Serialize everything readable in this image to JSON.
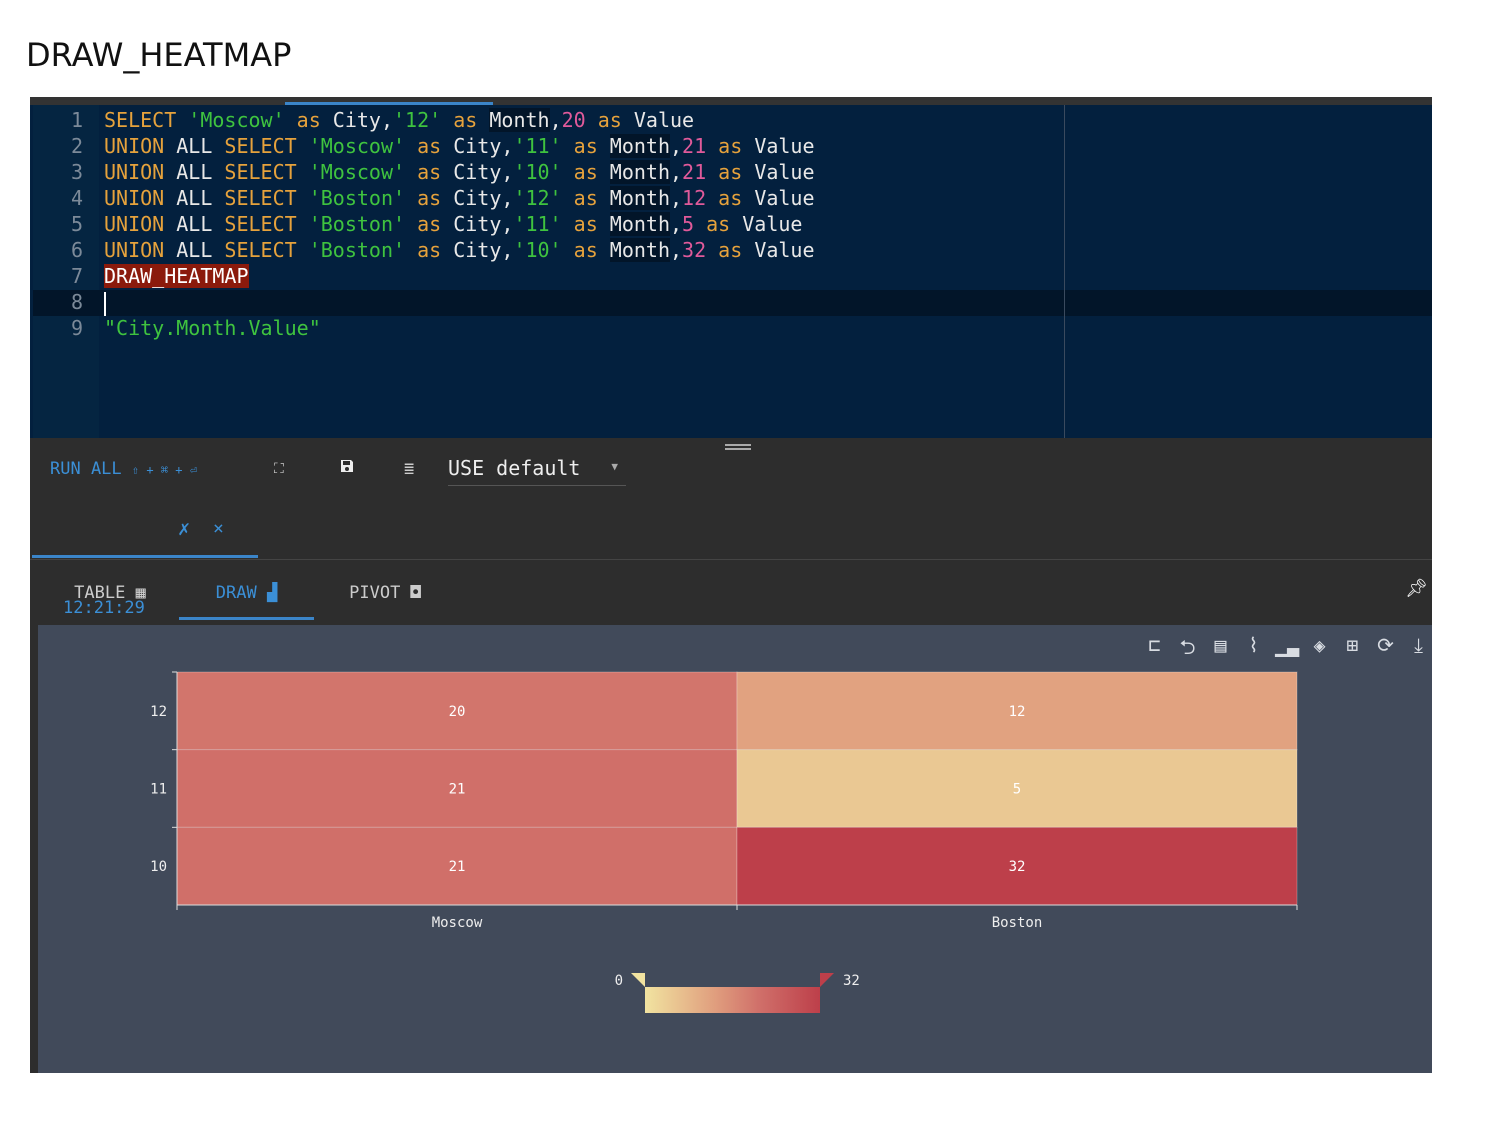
{
  "page_title": "DRAW_HEATMAP",
  "editor": {
    "lines": [
      [
        [
          "k",
          "SELECT "
        ],
        [
          "s",
          "'Moscow'"
        ],
        [
          "k",
          " as "
        ],
        [
          "w",
          "City,"
        ],
        [
          "s",
          "'12'"
        ],
        [
          "k",
          " as "
        ],
        [
          "m",
          "Month"
        ],
        [
          "w",
          ","
        ],
        [
          "n",
          "20"
        ],
        [
          "k",
          " as "
        ],
        [
          "w",
          "Value"
        ]
      ],
      [
        [
          "k",
          "UNION "
        ],
        [
          "w",
          "ALL "
        ],
        [
          "k",
          "SELECT "
        ],
        [
          "s",
          "'Moscow'"
        ],
        [
          "k",
          " as "
        ],
        [
          "w",
          "City,"
        ],
        [
          "s",
          "'11'"
        ],
        [
          "k",
          " as "
        ],
        [
          "m",
          "Month"
        ],
        [
          "w",
          ","
        ],
        [
          "n",
          "21"
        ],
        [
          "k",
          " as "
        ],
        [
          "w",
          "Value"
        ]
      ],
      [
        [
          "k",
          "UNION "
        ],
        [
          "w",
          "ALL "
        ],
        [
          "k",
          "SELECT "
        ],
        [
          "s",
          "'Moscow'"
        ],
        [
          "k",
          " as "
        ],
        [
          "w",
          "City,"
        ],
        [
          "s",
          "'10'"
        ],
        [
          "k",
          " as "
        ],
        [
          "m",
          "Month"
        ],
        [
          "w",
          ","
        ],
        [
          "n",
          "21"
        ],
        [
          "k",
          " as "
        ],
        [
          "w",
          "Value"
        ]
      ],
      [
        [
          "k",
          "UNION "
        ],
        [
          "w",
          "ALL "
        ],
        [
          "k",
          "SELECT "
        ],
        [
          "s",
          "'Boston'"
        ],
        [
          "k",
          " as "
        ],
        [
          "w",
          "City,"
        ],
        [
          "s",
          "'12'"
        ],
        [
          "k",
          " as "
        ],
        [
          "m",
          "Month"
        ],
        [
          "w",
          ","
        ],
        [
          "n",
          "12"
        ],
        [
          "k",
          " as "
        ],
        [
          "w",
          "Value"
        ]
      ],
      [
        [
          "k",
          "UNION "
        ],
        [
          "w",
          "ALL "
        ],
        [
          "k",
          "SELECT "
        ],
        [
          "s",
          "'Boston'"
        ],
        [
          "k",
          " as "
        ],
        [
          "w",
          "City,"
        ],
        [
          "s",
          "'11'"
        ],
        [
          "k",
          " as "
        ],
        [
          "m",
          "Month"
        ],
        [
          "w",
          ","
        ],
        [
          "n",
          "5"
        ],
        [
          "k",
          " as "
        ],
        [
          "w",
          "Value"
        ]
      ],
      [
        [
          "k",
          "UNION "
        ],
        [
          "w",
          "ALL "
        ],
        [
          "k",
          "SELECT "
        ],
        [
          "s",
          "'Boston'"
        ],
        [
          "k",
          " as "
        ],
        [
          "w",
          "City,"
        ],
        [
          "s",
          "'10'"
        ],
        [
          "k",
          " as "
        ],
        [
          "m",
          "Month"
        ],
        [
          "w",
          ","
        ],
        [
          "n",
          "32"
        ],
        [
          "k",
          " as "
        ],
        [
          "w",
          "Value"
        ]
      ],
      [
        [
          "h",
          "DRAW_HEATMAP"
        ]
      ],
      [
        [
          "c",
          ""
        ]
      ],
      [
        [
          "s",
          "\"City.Month.Value\""
        ]
      ]
    ]
  },
  "toolbar": {
    "run_all": "RUN ALL",
    "shortcut": "⇧ + ⌘ + ⏎",
    "use_db": "USE default"
  },
  "result_tab": {
    "time": "12:21:29",
    "close": "×"
  },
  "view_tabs": {
    "table": "TABLE",
    "draw": "DRAW",
    "pivot": "PIVOT"
  },
  "colors": {
    "accent": "#3b8fd6",
    "min": "#f1e3a0",
    "max": "#bd3f4a"
  },
  "chart_data": {
    "type": "heatmap",
    "x_categories": [
      "Moscow",
      "Boston"
    ],
    "y_categories": [
      "10",
      "11",
      "12"
    ],
    "values": [
      [
        "Moscow",
        "12",
        20
      ],
      [
        "Moscow",
        "11",
        21
      ],
      [
        "Moscow",
        "10",
        21
      ],
      [
        "Boston",
        "12",
        12
      ],
      [
        "Boston",
        "11",
        5
      ],
      [
        "Boston",
        "10",
        32
      ]
    ],
    "visual_map": {
      "min": 0,
      "max": 32,
      "min_label": "0",
      "max_label": "32"
    }
  }
}
